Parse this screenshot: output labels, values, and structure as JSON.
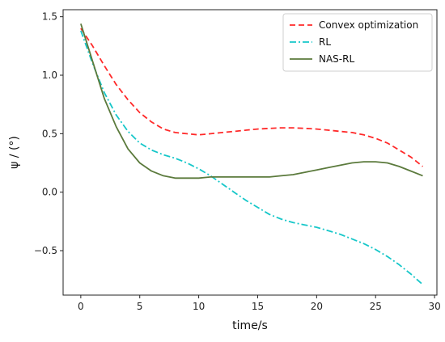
{
  "chart_data": {
    "type": "line",
    "xlabel": "time/s",
    "ylabel": "ψ / (°)",
    "xlim": [
      -1.5,
      30.2
    ],
    "ylim": [
      -0.88,
      1.56
    ],
    "xticks": [
      0,
      5,
      10,
      15,
      20,
      25,
      30
    ],
    "xtick_labels": [
      "0",
      "5",
      "10",
      "15",
      "20",
      "25",
      "30"
    ],
    "yticks": [
      -0.5,
      0.0,
      0.5,
      1.0,
      1.5
    ],
    "ytick_labels": [
      "−0.5",
      "0.0",
      "0.5",
      "1.0",
      "1.5"
    ],
    "grid": false,
    "legend": "top-right",
    "series": [
      {
        "name": "Convex optimization",
        "color": "#ff2a2a",
        "style": "dashed",
        "x": [
          0,
          1,
          2,
          3,
          4,
          5,
          6,
          7,
          8,
          9,
          10,
          11,
          12,
          13,
          14,
          15,
          16,
          17,
          18,
          19,
          20,
          21,
          22,
          23,
          24,
          25,
          26,
          27,
          28,
          29
        ],
        "y": [
          1.4,
          1.25,
          1.08,
          0.92,
          0.79,
          0.68,
          0.6,
          0.54,
          0.51,
          0.5,
          0.49,
          0.5,
          0.51,
          0.52,
          0.53,
          0.54,
          0.545,
          0.55,
          0.55,
          0.545,
          0.54,
          0.53,
          0.52,
          0.51,
          0.49,
          0.46,
          0.42,
          0.36,
          0.3,
          0.22
        ]
      },
      {
        "name": "RL",
        "color": "#17c7c9",
        "style": "dashdot",
        "x": [
          0,
          1,
          2,
          3,
          4,
          5,
          6,
          7,
          8,
          9,
          10,
          11,
          12,
          13,
          14,
          15,
          16,
          17,
          18,
          19,
          20,
          21,
          22,
          23,
          24,
          25,
          26,
          27,
          28,
          29
        ],
        "y": [
          1.38,
          1.1,
          0.85,
          0.66,
          0.52,
          0.42,
          0.36,
          0.32,
          0.29,
          0.25,
          0.2,
          0.14,
          0.07,
          0.0,
          -0.07,
          -0.13,
          -0.19,
          -0.23,
          -0.26,
          -0.28,
          -0.3,
          -0.33,
          -0.36,
          -0.4,
          -0.44,
          -0.49,
          -0.55,
          -0.62,
          -0.7,
          -0.79
        ]
      },
      {
        "name": "NAS-RL",
        "color": "#5b7a3c",
        "style": "solid",
        "x": [
          0,
          1,
          2,
          3,
          4,
          5,
          6,
          7,
          8,
          9,
          10,
          11,
          12,
          13,
          14,
          15,
          16,
          17,
          18,
          19,
          20,
          21,
          22,
          23,
          24,
          25,
          26,
          27,
          28,
          29
        ],
        "y": [
          1.44,
          1.12,
          0.8,
          0.56,
          0.37,
          0.25,
          0.18,
          0.14,
          0.12,
          0.12,
          0.12,
          0.13,
          0.13,
          0.13,
          0.13,
          0.13,
          0.13,
          0.14,
          0.15,
          0.17,
          0.19,
          0.21,
          0.23,
          0.25,
          0.26,
          0.26,
          0.25,
          0.22,
          0.18,
          0.14
        ]
      }
    ]
  }
}
